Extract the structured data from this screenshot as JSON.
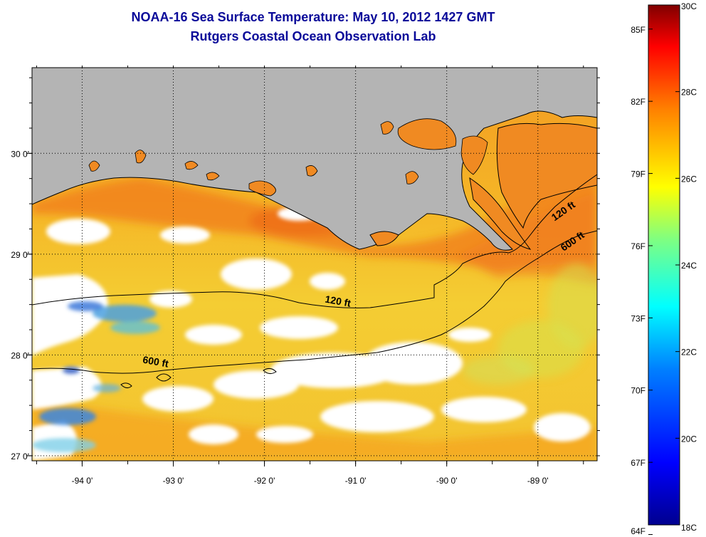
{
  "title": {
    "line1": "NOAA-16 Sea Surface Temperature:  May 10, 2012 1427 GMT",
    "line2": "Rutgers Coastal Ocean Observation Lab"
  },
  "map": {
    "lon_range": [
      -94.55,
      -88.35
    ],
    "lat_range": [
      26.95,
      30.85
    ],
    "lon_ticks": [
      {
        "value": -94,
        "label": "-94 0'"
      },
      {
        "value": -93,
        "label": "-93 0'"
      },
      {
        "value": -92,
        "label": "-92 0'"
      },
      {
        "value": -91,
        "label": "-91 0'"
      },
      {
        "value": -90,
        "label": "-90 0'"
      },
      {
        "value": -89,
        "label": "-89 0'"
      }
    ],
    "lat_ticks": [
      {
        "value": 27,
        "label": "27 0'"
      },
      {
        "value": 28,
        "label": "28 0'"
      },
      {
        "value": 29,
        "label": "29 0'"
      },
      {
        "value": 30,
        "label": "30 0'"
      }
    ],
    "contour_labels": [
      {
        "text": "120 ft",
        "lon": -91.2,
        "lat": 28.5
      },
      {
        "text": "600 ft",
        "lon": -93.2,
        "lat": 27.9
      },
      {
        "text": "120 ft",
        "lon": -88.7,
        "lat": 29.4
      },
      {
        "text": "600 ft",
        "lon": -88.6,
        "lat": 29.1
      }
    ],
    "colors": {
      "land": "#b4b4b4",
      "gulf_warm": "#f5a623",
      "shelf_hot": "#f07b1e",
      "offshore": "#f2d13a",
      "cold": "#2f7fd8",
      "cloud": "#ffffff",
      "contour": "#000000"
    }
  },
  "colorbar": {
    "range_c": [
      18,
      30
    ],
    "celsius_labels": [
      "30C",
      "28C",
      "26C",
      "24C",
      "22C",
      "20C",
      "18C"
    ],
    "fahrenheit_labels": [
      "85F",
      "82F",
      "79F",
      "76F",
      "73F",
      "70F",
      "67F",
      "64F"
    ],
    "stops": [
      "#00008f",
      "#0000ff",
      "#0080ff",
      "#00ffff",
      "#80ff80",
      "#ffff00",
      "#ff8000",
      "#ff0000",
      "#800000"
    ]
  }
}
